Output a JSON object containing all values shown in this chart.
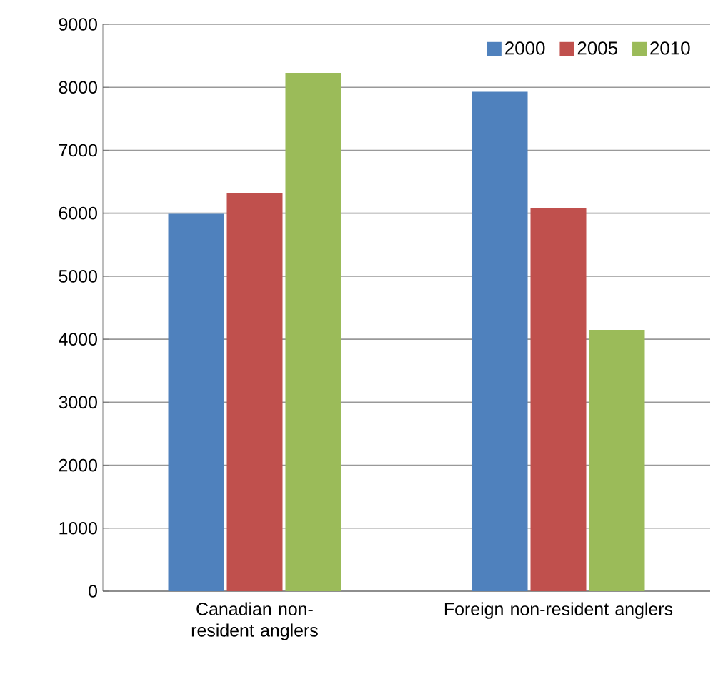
{
  "chart_data": {
    "type": "bar",
    "categories": [
      "Canadian non-resident anglers",
      "Foreign non-resident anglers"
    ],
    "series": [
      {
        "name": "2000",
        "color": "#4f81bd",
        "values": [
          5990,
          7930
        ]
      },
      {
        "name": "2005",
        "color": "#c0504d",
        "values": [
          6320,
          6075
        ]
      },
      {
        "name": "2010",
        "color": "#9bbb59",
        "values": [
          8230,
          4150
        ]
      }
    ],
    "ylim": [
      0,
      9000
    ],
    "yticks": [
      0,
      1000,
      2000,
      3000,
      4000,
      5000,
      6000,
      7000,
      8000,
      9000
    ],
    "grid": "y",
    "legend": "top right"
  }
}
